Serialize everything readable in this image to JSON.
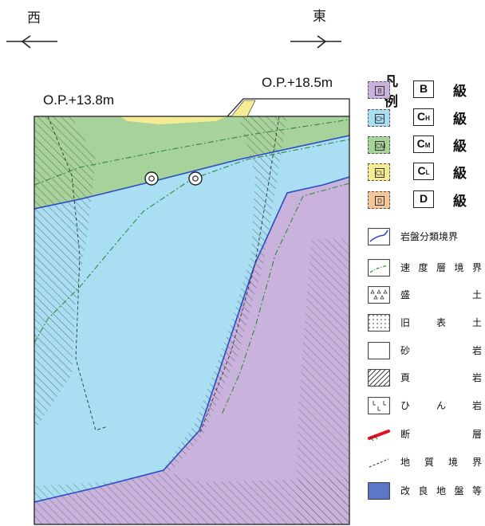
{
  "compass": {
    "west": "西",
    "east": "東"
  },
  "elevations": {
    "west": "O.P.+13.8m",
    "east": "O.P.+18.5m"
  },
  "legend": {
    "title": "凡 例",
    "grades": [
      {
        "swatch": "B",
        "box_main": "B",
        "box_sub": "",
        "suffix": "級",
        "color": "#c9b3dc"
      },
      {
        "swatch": "CH",
        "box_main": "C",
        "box_sub": "H",
        "suffix": "級",
        "color": "#a9def3"
      },
      {
        "swatch": "CM",
        "box_main": "C",
        "box_sub": "M",
        "suffix": "級",
        "color": "#a7d39a"
      },
      {
        "swatch": "CL",
        "box_main": "C",
        "box_sub": "L",
        "suffix": "級",
        "color": "#f5eb93"
      },
      {
        "swatch": "D",
        "box_main": "D",
        "box_sub": "",
        "suffix": "級",
        "color": "#f3c79a"
      }
    ],
    "lines": [
      {
        "icon": "rock-boundary-icon",
        "label": "岩盤分類境界",
        "spread": false
      },
      {
        "icon": "velocity-boundary-icon",
        "label": "速度層境界",
        "spread": true
      },
      {
        "icon": "fill-soil-icon",
        "label": "盛 土",
        "spread": true
      },
      {
        "icon": "old-topsoil-icon",
        "label": "旧表土",
        "spread": true
      },
      {
        "icon": "sandstone-icon",
        "label": "砂 岩",
        "spread": true
      },
      {
        "icon": "shale-icon",
        "label": "頁 岩",
        "spread": true
      },
      {
        "icon": "hornfels-icon",
        "label": "ひん岩",
        "spread": true
      },
      {
        "icon": "fault-icon",
        "label": "断 層",
        "spread": true
      },
      {
        "icon": "geologic-boundary-icon",
        "label": "地質境界",
        "spread": true
      },
      {
        "icon": "improved-ground-icon",
        "label": "改良地盤等",
        "spread": true
      }
    ]
  },
  "colors": {
    "grade_b": "#c9b3dc",
    "grade_ch": "#a9def3",
    "grade_cm": "#a7d39a",
    "grade_cl": "#f5eb93",
    "grade_d": "#f3c79a",
    "rock_boundary": "#2b4cc4",
    "velocity_boundary": "#2f8a3a",
    "fault": "#e0141e",
    "improved_ground": "#5b78c8"
  }
}
